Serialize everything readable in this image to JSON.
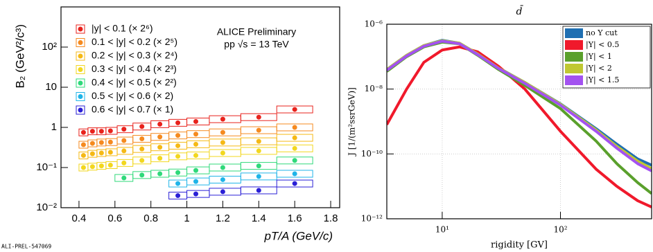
{
  "footer": "ALI-PREL-547069",
  "chart_data": [
    {
      "type": "scatter",
      "ylabel": "B₂ (GeV²/c³)",
      "xlabel": "pT/A (GeV/c)",
      "annotations": [
        "ALICE Preliminary",
        "pp √s = 13 TeV"
      ],
      "log_y": true,
      "xlim": [
        0.3,
        1.85
      ],
      "ylim": [
        0.01,
        1000
      ],
      "xticks": [
        0.4,
        0.6,
        0.8,
        1,
        1.2,
        1.4,
        1.6,
        1.8
      ],
      "yticks": [
        {
          "value": 0.01,
          "label": "10⁻²"
        },
        {
          "value": 0.1,
          "label": "10⁻¹"
        },
        1,
        10,
        {
          "value": 100,
          "label": "10²"
        }
      ],
      "legend": "upper left",
      "series": [
        {
          "name": "|y| < 0.1 (× 2⁶)",
          "color": "#e8221c",
          "x": [
            0.425,
            0.475,
            0.525,
            0.575,
            0.65,
            0.75,
            0.85,
            0.95,
            1.05,
            1.2,
            1.4,
            1.6
          ],
          "values": [
            0.75,
            0.8,
            0.8,
            0.82,
            0.9,
            1.05,
            1.2,
            1.3,
            1.4,
            1.6,
            1.8,
            2.8
          ]
        },
        {
          "name": "0.1 < |y| < 0.2 (× 2⁵)",
          "color": "#f58a1f",
          "x": [
            0.425,
            0.475,
            0.525,
            0.575,
            0.65,
            0.75,
            0.85,
            0.95,
            1.05,
            1.2,
            1.4,
            1.6
          ],
          "values": [
            0.37,
            0.4,
            0.42,
            0.43,
            0.47,
            0.52,
            0.58,
            0.63,
            0.68,
            0.75,
            0.85,
            1.0
          ]
        },
        {
          "name": "0.2 < |y| < 0.3 (× 2⁴)",
          "color": "#f5b915",
          "x": [
            0.425,
            0.475,
            0.525,
            0.575,
            0.65,
            0.75,
            0.85,
            0.95,
            1.05,
            1.2,
            1.4,
            1.6
          ],
          "values": [
            0.2,
            0.22,
            0.23,
            0.24,
            0.26,
            0.29,
            0.32,
            0.35,
            0.38,
            0.42,
            0.45,
            0.55
          ]
        },
        {
          "name": "0.3 < |y| < 0.4 (× 2³)",
          "color": "#f2d71f",
          "x": [
            0.425,
            0.475,
            0.525,
            0.575,
            0.65,
            0.75,
            0.85,
            0.95,
            1.05,
            1.2,
            1.4,
            1.6
          ],
          "values": [
            0.1,
            0.105,
            0.11,
            0.115,
            0.13,
            0.15,
            0.17,
            0.19,
            0.2,
            0.23,
            0.26,
            0.3
          ]
        },
        {
          "name": "0.4 < |y| < 0.5 (× 2²)",
          "color": "#2fd97a",
          "x": [
            0.65,
            0.75,
            0.85,
            0.95,
            1.05,
            1.2,
            1.4,
            1.6
          ],
          "values": [
            0.055,
            0.065,
            0.07,
            0.075,
            0.085,
            0.1,
            0.11,
            0.15
          ]
        },
        {
          "name": "0.5 < |y| < 0.6 (× 2)",
          "color": "#1fb4e8",
          "x": [
            0.95,
            1.05,
            1.2,
            1.4,
            1.6
          ],
          "values": [
            0.04,
            0.045,
            0.05,
            0.06,
            0.07
          ]
        },
        {
          "name": "0.6 < |y| < 0.7 (× 1)",
          "color": "#2a1fd6",
          "x": [
            0.95,
            1.05,
            1.2,
            1.4,
            1.6
          ],
          "values": [
            0.02,
            0.022,
            0.025,
            0.027,
            0.04
          ]
        }
      ]
    },
    {
      "type": "line",
      "title": "d̄",
      "ylabel": "J [1/(m²ssrGeV)]",
      "xlabel": "rigidity [GV]",
      "log_x": true,
      "log_y": true,
      "grid": true,
      "legend": "upper right",
      "xlim": [
        3.4,
        590
      ],
      "ylim": [
        1e-12,
        1e-06
      ],
      "xticks": [
        {
          "value": 10,
          "label": "10¹"
        },
        {
          "value": 100,
          "label": "10²"
        }
      ],
      "yticks": [
        {
          "value": 1e-12,
          "label": "10⁻¹²"
        },
        {
          "value": 1e-10,
          "label": "10⁻¹⁰"
        },
        {
          "value": 1e-08,
          "label": "10⁻⁸"
        },
        {
          "value": 1e-06,
          "label": "10⁻⁶"
        }
      ],
      "x": [
        3.4,
        5,
        7,
        10,
        14,
        20,
        30,
        50,
        100,
        200,
        300,
        450,
        590
      ],
      "series": [
        {
          "name": "no Y cut",
          "color": "#1f6fb2",
          "values": [
            4e-08,
            1.1e-07,
            2.2e-07,
            3.2e-07,
            2.6e-07,
            1.2e-07,
            4.5e-08,
            1.6e-08,
            3.5e-09,
            6e-10,
            2e-10,
            7e-11,
            4.5e-11
          ]
        },
        {
          "name": "|Y| < 0.5",
          "color": "#f0192b",
          "values": [
            8e-10,
            1e-08,
            6.7e-08,
            1.6e-07,
            2e-07,
            1.4e-07,
            5e-08,
            1e-08,
            5e-10,
            3.4e-11,
            1e-11,
            3.6e-12,
            2.3e-12
          ]
        },
        {
          "name": "|Y| < 1",
          "color": "#5aa02c",
          "values": [
            3.5e-08,
            1e-07,
            2e-07,
            2.8e-07,
            2.5e-07,
            1.1e-07,
            4e-08,
            1.3e-08,
            2.5e-09,
            2.5e-10,
            5e-11,
            1.3e-11,
            6e-12
          ]
        },
        {
          "name": "|Y| < 2",
          "color": "#c0c832",
          "values": [
            4e-08,
            1.1e-07,
            2.2e-07,
            3.1e-07,
            2.6e-07,
            1.2e-07,
            4.4e-08,
            1.6e-08,
            3.4e-09,
            5.5e-10,
            1.7e-10,
            6e-11,
            3.5e-11
          ]
        },
        {
          "name": "|Y| < 1.5",
          "color": "#a352f0",
          "values": [
            3.8e-08,
            1.05e-07,
            2.1e-07,
            3e-07,
            2.5e-07,
            1.15e-07,
            4.3e-08,
            1.5e-08,
            3.2e-09,
            5e-10,
            1.5e-10,
            5e-11,
            3e-11
          ]
        }
      ]
    }
  ]
}
